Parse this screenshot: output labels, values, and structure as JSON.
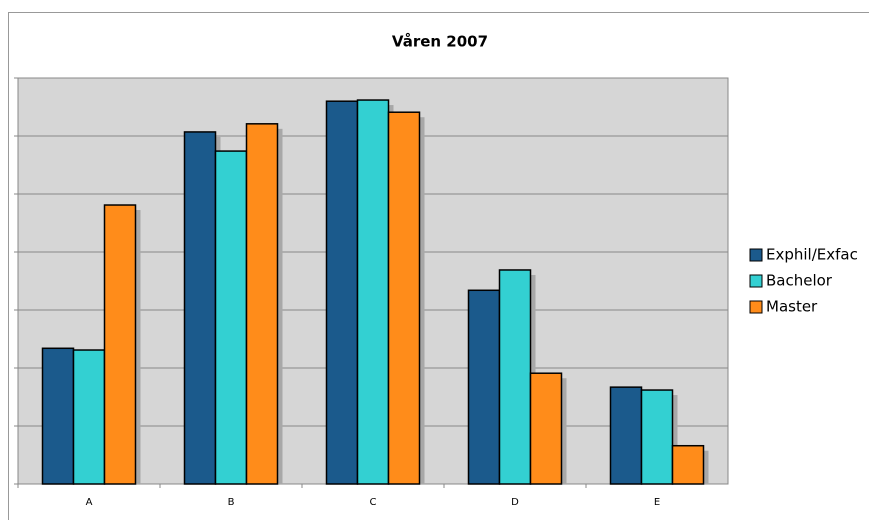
{
  "chart_data": {
    "type": "bar",
    "title": "Våren 2007",
    "categories": [
      "A",
      "B",
      "C",
      "D",
      "E"
    ],
    "series": [
      {
        "name": "Exphil/Exfac",
        "color": "#1b5a8c",
        "values": [
          2.34,
          6.07,
          6.6,
          3.34,
          1.67
        ]
      },
      {
        "name": "Bachelor",
        "color": "#33d0d2",
        "values": [
          2.31,
          5.74,
          6.62,
          3.69,
          1.62
        ]
      },
      {
        "name": "Master",
        "color": "#ff8c1a",
        "values": [
          4.81,
          6.21,
          6.41,
          1.91,
          0.66
        ]
      }
    ],
    "ylim": [
      0,
      7
    ],
    "yticks": [
      0,
      1,
      2,
      3,
      4,
      5,
      6,
      7
    ],
    "grid": true,
    "legend": "right"
  }
}
